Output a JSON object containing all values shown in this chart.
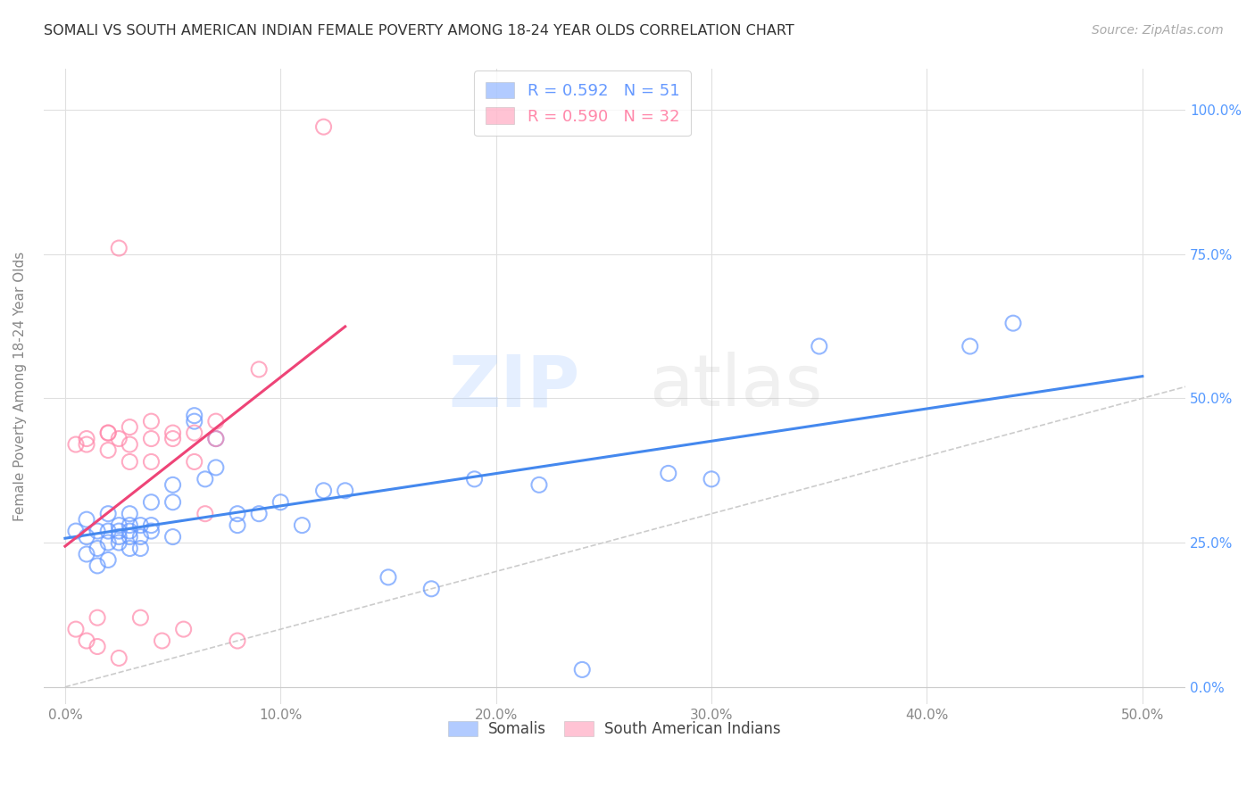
{
  "title": "SOMALI VS SOUTH AMERICAN INDIAN FEMALE POVERTY AMONG 18-24 YEAR OLDS CORRELATION CHART",
  "source": "Source: ZipAtlas.com",
  "ylabel": "Female Poverty Among 18-24 Year Olds",
  "x_ticks": [
    0.0,
    0.1,
    0.2,
    0.3,
    0.4,
    0.5
  ],
  "x_tick_labels": [
    "0.0%",
    "10.0%",
    "20.0%",
    "30.0%",
    "40.0%",
    "50.0%"
  ],
  "y_ticks": [
    0.0,
    0.25,
    0.5,
    0.75,
    1.0
  ],
  "y_tick_labels": [
    "0.0%",
    "25.0%",
    "50.0%",
    "75.0%",
    "100.0%"
  ],
  "xlim": [
    -0.01,
    0.52
  ],
  "ylim": [
    -0.03,
    1.07
  ],
  "somali_R": 0.592,
  "somali_N": 51,
  "sai_R": 0.59,
  "sai_N": 32,
  "somali_color": "#6699ff",
  "sai_color": "#ff88aa",
  "trendline_somali_color": "#4488ee",
  "trendline_sai_color": "#ee4477",
  "trendline_ref_color": "#cccccc",
  "watermark_zip": "ZIP",
  "watermark_atlas": "atlas",
  "legend_label_somali": "Somalis",
  "legend_label_sai": "South American Indians",
  "somali_x": [
    0.005,
    0.01,
    0.01,
    0.01,
    0.015,
    0.015,
    0.015,
    0.02,
    0.02,
    0.02,
    0.02,
    0.025,
    0.025,
    0.025,
    0.025,
    0.03,
    0.03,
    0.03,
    0.03,
    0.03,
    0.035,
    0.035,
    0.035,
    0.04,
    0.04,
    0.04,
    0.05,
    0.05,
    0.05,
    0.06,
    0.06,
    0.065,
    0.07,
    0.07,
    0.08,
    0.08,
    0.09,
    0.1,
    0.11,
    0.12,
    0.13,
    0.15,
    0.17,
    0.19,
    0.22,
    0.24,
    0.28,
    0.3,
    0.35,
    0.42,
    0.44
  ],
  "somali_y": [
    0.27,
    0.23,
    0.26,
    0.29,
    0.24,
    0.27,
    0.21,
    0.25,
    0.27,
    0.3,
    0.22,
    0.26,
    0.28,
    0.27,
    0.25,
    0.3,
    0.24,
    0.27,
    0.26,
    0.28,
    0.28,
    0.26,
    0.24,
    0.32,
    0.28,
    0.27,
    0.35,
    0.26,
    0.32,
    0.46,
    0.47,
    0.36,
    0.43,
    0.38,
    0.3,
    0.28,
    0.3,
    0.32,
    0.28,
    0.34,
    0.34,
    0.19,
    0.17,
    0.36,
    0.35,
    0.03,
    0.37,
    0.36,
    0.59,
    0.59,
    0.63
  ],
  "sai_x": [
    0.005,
    0.005,
    0.01,
    0.01,
    0.01,
    0.015,
    0.015,
    0.02,
    0.02,
    0.02,
    0.025,
    0.025,
    0.025,
    0.03,
    0.03,
    0.03,
    0.035,
    0.04,
    0.04,
    0.04,
    0.045,
    0.05,
    0.05,
    0.055,
    0.06,
    0.06,
    0.065,
    0.07,
    0.07,
    0.08,
    0.09,
    0.12
  ],
  "sai_y": [
    0.42,
    0.1,
    0.43,
    0.08,
    0.42,
    0.12,
    0.07,
    0.44,
    0.44,
    0.41,
    0.76,
    0.43,
    0.05,
    0.45,
    0.39,
    0.42,
    0.12,
    0.46,
    0.39,
    0.43,
    0.08,
    0.44,
    0.43,
    0.1,
    0.39,
    0.44,
    0.3,
    0.46,
    0.43,
    0.08,
    0.55,
    0.97
  ]
}
